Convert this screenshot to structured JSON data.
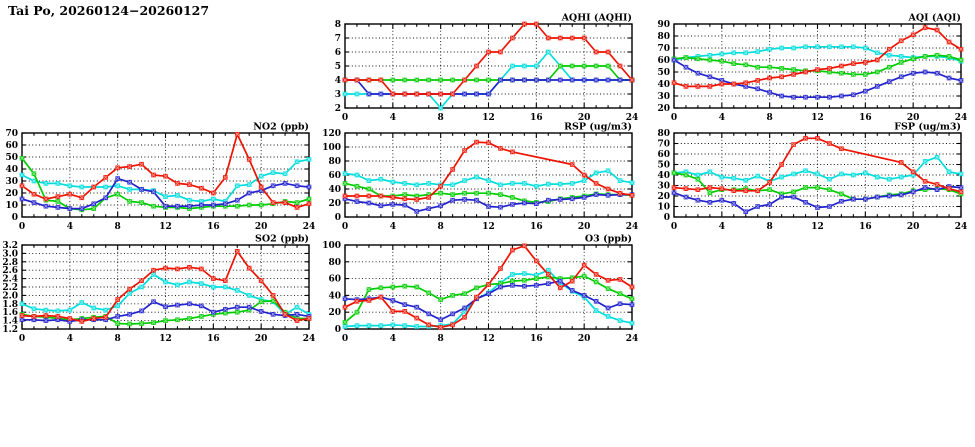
{
  "page": {
    "title": "Tai Po, 20260124−20260127"
  },
  "palette": {
    "red": "#ee1100",
    "blue": "#2222cc",
    "green": "#00cc00",
    "cyan": "#00dddd",
    "axis": "#000000"
  },
  "chart_data": [
    {
      "id": "aqhi",
      "type": "line",
      "title": "AQHI (AQHI)",
      "x_range": [
        0,
        24
      ],
      "x_tick_step": 4,
      "x_minor_step": 1,
      "ylim": [
        2,
        8
      ],
      "ystep": 1,
      "ydecimals": 0,
      "grid": true,
      "legend": "none",
      "series": [
        {
          "name": "cyan",
          "color": "#00dddd",
          "values": [
            3,
            3,
            3,
            3,
            3,
            3,
            3,
            3,
            2,
            3,
            3,
            3,
            3,
            4,
            5,
            5,
            5,
            6,
            5,
            4,
            4,
            4,
            4,
            4,
            4
          ]
        },
        {
          "name": "green",
          "color": "#00cc00",
          "values": [
            4,
            4,
            4,
            4,
            4,
            4,
            4,
            4,
            4,
            4,
            4,
            4,
            4,
            4,
            4,
            4,
            4,
            4,
            5,
            5,
            5,
            5,
            5,
            4,
            4
          ]
        },
        {
          "name": "blue",
          "color": "#2222cc",
          "values": [
            4,
            4,
            3,
            3,
            3,
            3,
            3,
            3,
            3,
            3,
            3,
            3,
            3,
            4,
            4,
            4,
            4,
            4,
            4,
            4,
            4,
            4,
            4,
            4,
            4
          ]
        },
        {
          "name": "red",
          "color": "#ee1100",
          "values": [
            4,
            4,
            4,
            4,
            3,
            3,
            3,
            3,
            3,
            3,
            4,
            5,
            6,
            6,
            7,
            8,
            8,
            7,
            7,
            7,
            7,
            6,
            6,
            5,
            4
          ]
        }
      ]
    },
    {
      "id": "aqi",
      "type": "line",
      "title": "AQI (AQI)",
      "x_range": [
        0,
        24
      ],
      "x_tick_step": 4,
      "x_minor_step": 1,
      "ylim": [
        20,
        90
      ],
      "ystep": 10,
      "ydecimals": 0,
      "grid": true,
      "legend": "none",
      "series": [
        {
          "name": "cyan",
          "color": "#00dddd",
          "values": [
            60,
            62,
            63,
            64,
            65,
            66,
            66,
            67,
            69,
            70,
            70,
            71,
            71,
            71,
            71,
            71,
            70,
            66,
            64,
            63,
            62,
            63,
            63,
            62,
            59
          ]
        },
        {
          "name": "green",
          "color": "#00cc00",
          "values": [
            61,
            62,
            61,
            60,
            59,
            57,
            56,
            54,
            54,
            53,
            52,
            51,
            51,
            50,
            49,
            48,
            48,
            50,
            54,
            58,
            61,
            63,
            64,
            63,
            60
          ]
        },
        {
          "name": "blue",
          "color": "#2222cc",
          "values": [
            60,
            54,
            49,
            46,
            43,
            40,
            38,
            36,
            33,
            30,
            29,
            29,
            29,
            29,
            30,
            31,
            34,
            38,
            42,
            46,
            49,
            50,
            49,
            45,
            43
          ]
        },
        {
          "name": "red",
          "color": "#ee1100",
          "values": [
            41,
            38,
            38,
            38,
            40,
            40,
            41,
            43,
            45,
            46,
            48,
            50,
            52,
            53,
            55,
            57,
            58,
            60,
            69,
            76,
            81,
            87,
            85,
            75,
            69
          ]
        }
      ]
    },
    {
      "id": "no2",
      "type": "line",
      "title": "NO2 (ppb)",
      "x_range": [
        0,
        24
      ],
      "x_tick_step": 4,
      "x_minor_step": 1,
      "ylim": [
        0,
        70
      ],
      "ystep": 10,
      "ydecimals": 0,
      "grid": true,
      "legend": "none",
      "series": [
        {
          "name": "cyan",
          "color": "#00dddd",
          "values": [
            35,
            30,
            28,
            28,
            26,
            25,
            25,
            25,
            26,
            23,
            23,
            22,
            17,
            18,
            14,
            13,
            15,
            13,
            26,
            27,
            34,
            37,
            36,
            46,
            48
          ]
        },
        {
          "name": "green",
          "color": "#00cc00",
          "values": [
            49,
            36,
            14,
            13,
            7,
            6,
            7,
            16,
            19,
            13,
            12,
            9,
            8,
            8,
            7,
            8,
            9,
            9,
            9,
            10,
            10,
            11,
            13,
            12,
            15
          ]
        },
        {
          "name": "blue",
          "color": "#2222cc",
          "values": [
            15,
            12,
            9,
            8,
            7,
            7,
            11,
            16,
            32,
            29,
            23,
            21,
            9,
            9,
            9,
            10,
            10,
            11,
            14,
            20,
            22,
            26,
            28,
            26,
            25
          ]
        },
        {
          "name": "red",
          "color": "#ee1100",
          "values": [
            26,
            19,
            15,
            17,
            19,
            16,
            25,
            33,
            41,
            42,
            44,
            35,
            34,
            28,
            27,
            24,
            20,
            33,
            69,
            48,
            25,
            12,
            12,
            8,
            11
          ]
        }
      ]
    },
    {
      "id": "rsp",
      "type": "line",
      "title": "RSP (ug/m3)",
      "x_range": [
        0,
        24
      ],
      "x_tick_step": 4,
      "x_minor_step": 1,
      "ylim": [
        0,
        120
      ],
      "ystep": 20,
      "ydecimals": 0,
      "grid": true,
      "legend": "none",
      "series": [
        {
          "name": "cyan",
          "color": "#00dddd",
          "values": [
            62,
            60,
            52,
            54,
            50,
            48,
            46,
            48,
            46,
            46,
            52,
            57,
            52,
            46,
            48,
            48,
            44,
            47,
            47,
            48,
            52,
            63,
            66,
            52,
            49
          ]
        },
        {
          "name": "green",
          "color": "#00cc00",
          "values": [
            48,
            44,
            40,
            30,
            30,
            32,
            30,
            32,
            34,
            32,
            34,
            34,
            34,
            32,
            28,
            23,
            21,
            22,
            26,
            28,
            30,
            33,
            32,
            32,
            31
          ]
        },
        {
          "name": "blue",
          "color": "#2222cc",
          "values": [
            26,
            22,
            20,
            16,
            18,
            17,
            8,
            12,
            16,
            24,
            25,
            24,
            15,
            14,
            18,
            20,
            19,
            24,
            25,
            26,
            28,
            32,
            31,
            32,
            32
          ]
        },
        {
          "name": "red",
          "color": "#ee1100",
          "values": [
            30,
            30,
            30,
            30,
            28,
            26,
            25,
            28,
            44,
            68,
            95,
            107,
            106,
            98,
            93,
            null,
            null,
            null,
            null,
            75,
            60,
            48,
            40,
            34,
            31
          ]
        }
      ]
    },
    {
      "id": "fsp",
      "type": "line",
      "title": "FSP (ug/m3)",
      "x_range": [
        0,
        24
      ],
      "x_tick_step": 4,
      "x_minor_step": 1,
      "ylim": [
        0,
        80
      ],
      "ystep": 10,
      "ydecimals": 0,
      "grid": true,
      "legend": "none",
      "series": [
        {
          "name": "cyan",
          "color": "#00dddd",
          "values": [
            42,
            43,
            40,
            43,
            38,
            37,
            35,
            39,
            34,
            38,
            41,
            44,
            41,
            36,
            41,
            40,
            42,
            38,
            36,
            38,
            40,
            53,
            57,
            43,
            41
          ]
        },
        {
          "name": "green",
          "color": "#00cc00",
          "values": [
            42,
            40,
            36,
            23,
            26,
            26,
            27,
            25,
            26,
            22,
            24,
            28,
            28,
            26,
            22,
            17,
            17,
            19,
            21,
            22,
            25,
            26,
            27,
            26,
            22
          ]
        },
        {
          "name": "blue",
          "color": "#2222cc",
          "values": [
            23,
            19,
            16,
            14,
            16,
            13,
            5,
            10,
            12,
            19,
            19,
            14,
            9,
            10,
            15,
            17,
            17,
            19,
            20,
            21,
            24,
            28,
            26,
            29,
            28
          ]
        },
        {
          "name": "red",
          "color": "#ee1100",
          "values": [
            28,
            27,
            26,
            28,
            27,
            25,
            25,
            25,
            33,
            50,
            69,
            75,
            75,
            70,
            65,
            null,
            null,
            null,
            null,
            52,
            43,
            34,
            31,
            27,
            24
          ]
        }
      ]
    },
    {
      "id": "so2",
      "type": "line",
      "title": "SO2 (ppb)",
      "x_range": [
        0,
        24
      ],
      "x_tick_step": 4,
      "x_minor_step": 1,
      "ylim": [
        1.2,
        3.2
      ],
      "ystep": 0.2,
      "ydecimals": 1,
      "grid": true,
      "legend": "none",
      "series": [
        {
          "name": "cyan",
          "color": "#00dddd",
          "values": [
            1.8,
            1.68,
            1.65,
            1.63,
            1.65,
            1.83,
            1.7,
            1.65,
            1.75,
            2.05,
            2.2,
            2.5,
            2.32,
            2.25,
            2.32,
            2.28,
            2.2,
            2.2,
            2.12,
            2.0,
            1.9,
            1.85,
            1.55,
            1.72,
            1.55
          ]
        },
        {
          "name": "green",
          "color": "#00cc00",
          "values": [
            1.55,
            1.5,
            1.48,
            1.45,
            1.42,
            1.45,
            1.48,
            1.5,
            1.33,
            1.32,
            1.33,
            1.35,
            1.4,
            1.42,
            1.45,
            1.5,
            1.55,
            1.58,
            1.6,
            1.65,
            1.85,
            1.87,
            1.6,
            1.45,
            1.45
          ]
        },
        {
          "name": "blue",
          "color": "#2222cc",
          "values": [
            1.42,
            1.42,
            1.4,
            1.42,
            1.38,
            1.42,
            1.42,
            1.42,
            1.5,
            1.55,
            1.63,
            1.85,
            1.73,
            1.77,
            1.8,
            1.75,
            1.6,
            1.67,
            1.72,
            1.72,
            1.62,
            1.55,
            1.52,
            1.55,
            1.5
          ]
        },
        {
          "name": "red",
          "color": "#ee1100",
          "values": [
            1.52,
            1.5,
            1.52,
            1.5,
            1.45,
            1.38,
            1.45,
            1.48,
            1.9,
            2.15,
            2.35,
            2.6,
            2.65,
            2.63,
            2.67,
            2.63,
            2.4,
            2.35,
            3.05,
            2.65,
            2.35,
            2.0,
            1.55,
            1.4,
            1.45
          ]
        }
      ]
    },
    {
      "id": "o3",
      "type": "line",
      "title": "O3 (ppb)",
      "x_range": [
        0,
        24
      ],
      "x_tick_step": 4,
      "x_minor_step": 1,
      "ylim": [
        0,
        100
      ],
      "ystep": 20,
      "ydecimals": 0,
      "grid": true,
      "legend": "none",
      "series": [
        {
          "name": "cyan",
          "color": "#00dddd",
          "values": [
            3,
            4,
            4,
            4,
            5,
            4,
            3,
            3,
            4,
            6,
            21,
            36,
            43,
            55,
            65,
            66,
            64,
            70,
            55,
            45,
            38,
            22,
            15,
            10,
            7
          ]
        },
        {
          "name": "green",
          "color": "#00cc00",
          "values": [
            8,
            20,
            47,
            49,
            50,
            51,
            50,
            43,
            35,
            40,
            42,
            49,
            53,
            54,
            57,
            58,
            60,
            62,
            60,
            61,
            63,
            56,
            48,
            42,
            36
          ]
        },
        {
          "name": "blue",
          "color": "#2222cc",
          "values": [
            36,
            35,
            36,
            38,
            34,
            29,
            26,
            18,
            11,
            18,
            25,
            36,
            42,
            50,
            52,
            51,
            52,
            54,
            57,
            46,
            40,
            33,
            25,
            30,
            29
          ]
        },
        {
          "name": "red",
          "color": "#ee1100",
          "values": [
            26,
            33,
            34,
            38,
            21,
            21,
            13,
            5,
            2,
            5,
            14,
            38,
            53,
            72,
            94,
            99,
            81,
            65,
            49,
            57,
            76,
            65,
            58,
            59,
            50
          ]
        }
      ]
    }
  ]
}
